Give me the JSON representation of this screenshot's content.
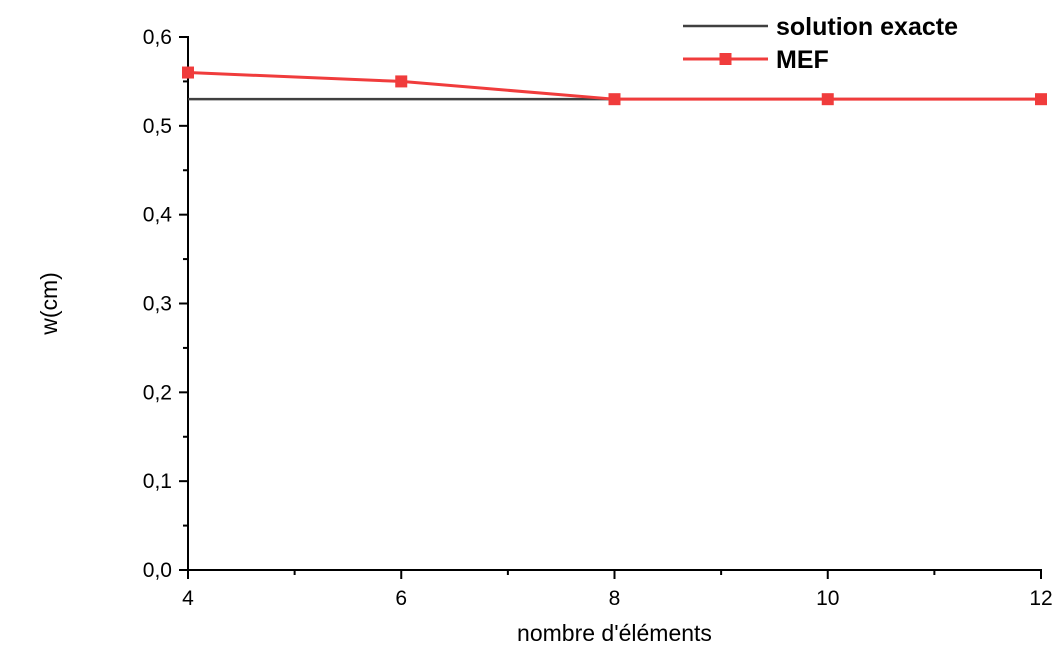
{
  "chart_data": {
    "type": "line",
    "xlabel": "nombre d'éléments",
    "ylabel": "w(cm)",
    "xlim": [
      4,
      12
    ],
    "ylim": [
      0.0,
      0.6
    ],
    "x_ticks": [
      "4",
      "6",
      "8",
      "10",
      "12"
    ],
    "y_ticks": [
      "0,0",
      "0,1",
      "0,2",
      "0,3",
      "0,4",
      "0,5",
      "0,6"
    ],
    "x": [
      4,
      6,
      8,
      10,
      12
    ],
    "series": [
      {
        "name": "solution exacte",
        "color": "#404040",
        "marker": "none",
        "values": [
          0.53,
          0.53,
          0.53,
          0.53,
          0.53
        ]
      },
      {
        "name": "MEF",
        "color": "#f03c3c",
        "marker": "square",
        "values": [
          0.56,
          0.55,
          0.53,
          0.53,
          0.53
        ]
      }
    ],
    "grid": false,
    "legend_position": "top-right"
  }
}
